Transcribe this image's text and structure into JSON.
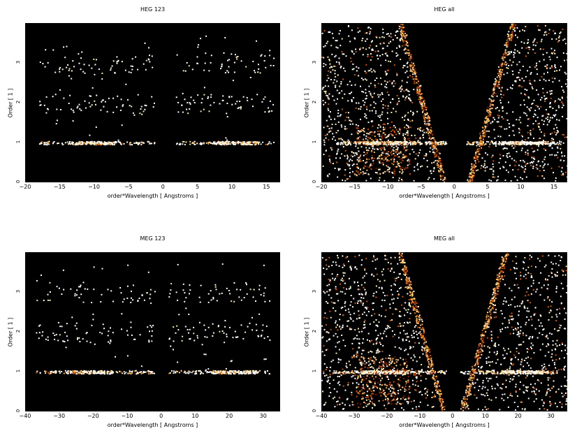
{
  "chart_data": [
    {
      "type": "scatter",
      "title": "HEG 123",
      "xlabel": "order*Wavelength [ Angstroms ]",
      "ylabel": "Order [ 1 ]",
      "xlim": [
        -20,
        17
      ],
      "ylim": [
        0,
        4
      ],
      "xticks": [
        "−20",
        "−15",
        "−10",
        "−5",
        "0",
        "5",
        "10",
        "15"
      ],
      "xtick_values": [
        -20,
        -15,
        -10,
        -5,
        0,
        5,
        10,
        15
      ],
      "yticks": [
        "0",
        "1",
        "2",
        "3"
      ],
      "ytick_values": [
        0,
        1,
        2,
        3
      ],
      "style": "sparse",
      "orders": [
        1,
        2,
        3
      ],
      "wave_range": [
        -18,
        16
      ],
      "gap": [
        -1.2,
        1.8
      ],
      "colors": [
        "#ffffff",
        "#ffe9a8",
        "#ffb347",
        "#d35400",
        "#7a1e00"
      ],
      "background": "#000000"
    },
    {
      "type": "scatter",
      "title": "HEG all",
      "xlabel": "order*Wavelength [ Angstroms ]",
      "ylabel": "Order [ 1 ]",
      "xlim": [
        -20,
        17
      ],
      "ylim": [
        0,
        4
      ],
      "xticks": [
        "−20",
        "−15",
        "−10",
        "−5",
        "0",
        "5",
        "10",
        "15"
      ],
      "xtick_values": [
        -20,
        -15,
        -10,
        -5,
        0,
        5,
        10,
        15
      ],
      "yticks": [
        "0",
        "1",
        "2",
        "3"
      ],
      "ytick_values": [
        0,
        1,
        2,
        3
      ],
      "style": "dense",
      "orders": [
        1
      ],
      "wave_range": [
        -18,
        16
      ],
      "gap": [
        -1.2,
        1.8
      ],
      "colors": [
        "#ffffff",
        "#ffe9a8",
        "#ffb347",
        "#d35400",
        "#7a1e00"
      ],
      "background": "#000000"
    },
    {
      "type": "scatter",
      "title": "MEG 123",
      "xlabel": "order*Wavelength [ Angstroms ]",
      "ylabel": "Order [ 1 ]",
      "xlim": [
        -40,
        35
      ],
      "ylim": [
        0,
        4
      ],
      "xticks": [
        "−40",
        "−30",
        "−20",
        "−10",
        "0",
        "10",
        "20",
        "30"
      ],
      "xtick_values": [
        -40,
        -30,
        -20,
        -10,
        0,
        10,
        20,
        30
      ],
      "yticks": [
        "0",
        "1",
        "2",
        "3"
      ],
      "ytick_values": [
        0,
        1,
        2,
        3
      ],
      "style": "sparse",
      "orders": [
        1,
        2,
        3
      ],
      "wave_range": [
        -37,
        32
      ],
      "gap": [
        -2,
        2
      ],
      "colors": [
        "#ffffff",
        "#ffe9a8",
        "#ffb347",
        "#d35400",
        "#7a1e00"
      ],
      "background": "#000000"
    },
    {
      "type": "scatter",
      "title": "MEG all",
      "xlabel": "order*Wavelength [ Angstroms ]",
      "ylabel": "Order [ 1 ]",
      "xlim": [
        -40,
        35
      ],
      "ylim": [
        0,
        4
      ],
      "xticks": [
        "−40",
        "−30",
        "−20",
        "−10",
        "0",
        "10",
        "20",
        "30"
      ],
      "xtick_values": [
        -40,
        -30,
        -20,
        -10,
        0,
        10,
        20,
        30
      ],
      "yticks": [
        "0",
        "1",
        "2",
        "3"
      ],
      "ytick_values": [
        0,
        1,
        2,
        3
      ],
      "style": "dense",
      "orders": [
        1
      ],
      "wave_range": [
        -37,
        32
      ],
      "gap": [
        -2,
        2
      ],
      "colors": [
        "#ffffff",
        "#ffe9a8",
        "#ffb347",
        "#d35400",
        "#7a1e00"
      ],
      "background": "#000000"
    }
  ]
}
